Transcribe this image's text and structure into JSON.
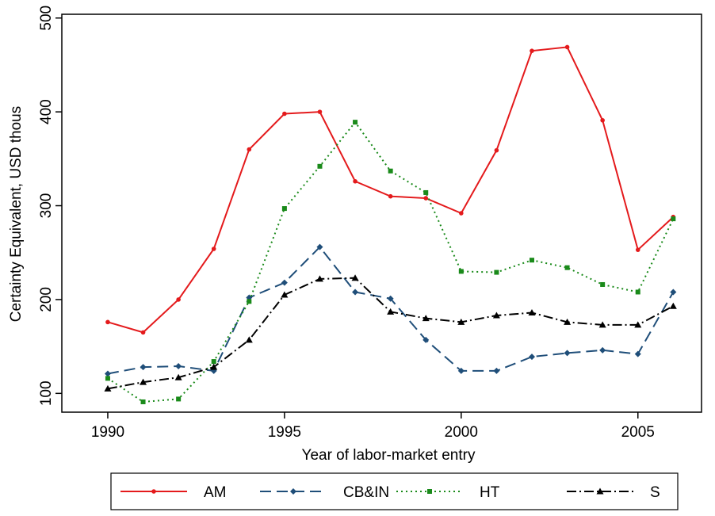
{
  "chart_data": {
    "type": "line",
    "xlabel": "Year of labor-market entry",
    "ylabel": "Certainty Equivalent, USD thous",
    "x": [
      1990,
      1991,
      1992,
      1993,
      1994,
      1995,
      1996,
      1997,
      1998,
      1999,
      2000,
      2001,
      2002,
      2003,
      2004,
      2005,
      2006
    ],
    "series": [
      {
        "name": "AM",
        "color": "#e41a1c",
        "values": [
          176,
          165,
          200,
          254,
          360,
          398,
          400,
          326,
          310,
          308,
          292,
          359,
          465,
          469,
          391,
          253,
          288
        ]
      },
      {
        "name": "CB&IN",
        "color": "#1f4e79",
        "values": [
          121,
          128,
          129,
          124,
          202,
          218,
          256,
          208,
          201,
          157,
          124,
          124,
          139,
          143,
          146,
          142,
          208
        ]
      },
      {
        "name": "HT",
        "color": "#1a8a1a",
        "values": [
          116,
          91,
          94,
          134,
          198,
          297,
          342,
          389,
          337,
          314,
          230,
          229,
          242,
          234,
          216,
          208,
          286
        ]
      },
      {
        "name": "S",
        "color": "#000000",
        "values": [
          105,
          112,
          117,
          128,
          157,
          205,
          222,
          223,
          187,
          180,
          176,
          183,
          186,
          176,
          173,
          173,
          193
        ]
      }
    ],
    "xlim": [
      1988.7,
      2006.8
    ],
    "xticks": [
      1990,
      1995,
      2000,
      2005
    ],
    "ylim": [
      80,
      504
    ],
    "yticks": [
      100,
      200,
      300,
      400,
      500
    ],
    "legend": "bottom"
  }
}
